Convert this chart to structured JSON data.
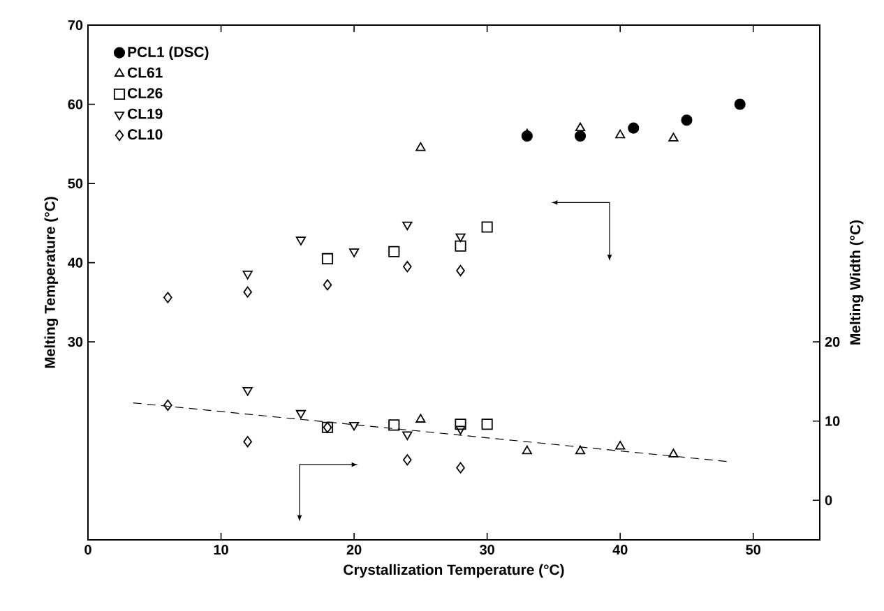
{
  "chart_data": {
    "type": "scatter",
    "xlabel": "Crystallization Temperature (°C)",
    "ylabel": "Melting Temperature (°C)",
    "y2label": "Melting Width (°C)",
    "xlim": [
      0,
      55
    ],
    "xticks": [
      0,
      10,
      20,
      30,
      40,
      50
    ],
    "ylim": [
      5,
      70
    ],
    "yticks": [
      30,
      40,
      50,
      60,
      70
    ],
    "y2lim": [
      -5,
      60
    ],
    "y2ticks": [
      0,
      10,
      20
    ],
    "legend": "top left",
    "series": [
      {
        "name": "PCL1 (DSC)",
        "color": "#000000",
        "marker": "circle",
        "x": [
          33,
          37,
          41,
          45,
          49
        ],
        "values": [
          56,
          56,
          57,
          58,
          60
        ]
      },
      {
        "name": "CL61",
        "color": "#000000",
        "marker": "triangle",
        "x": [
          25,
          33,
          37,
          40,
          44
        ],
        "values": [
          54.5,
          56.2,
          57,
          56.1,
          55.7
        ]
      },
      {
        "name": "CL26",
        "color": "#000000",
        "marker": "square",
        "x": [
          18,
          23,
          28,
          30
        ],
        "values": [
          40.5,
          41.4,
          42.1,
          44.5
        ]
      },
      {
        "name": "CL19",
        "color": "#000000",
        "marker": "triangle-down",
        "x": [
          12,
          16,
          20,
          24,
          28
        ],
        "values": [
          38.6,
          42.9,
          41.4,
          44.8,
          43.3
        ]
      },
      {
        "name": "CL10",
        "color": "#000000",
        "marker": "diamond",
        "x": [
          6,
          12,
          18,
          24,
          28
        ],
        "values": [
          35.6,
          36.3,
          37.2,
          39.5,
          39.0
        ]
      },
      {
        "color": "#000000",
        "marker": "triangle",
        "axis": "y2",
        "x": [
          25,
          33,
          37,
          40,
          44
        ],
        "values": [
          10.2,
          6.2,
          6.2,
          6.8,
          5.8
        ]
      },
      {
        "color": "#000000",
        "marker": "square",
        "axis": "y2",
        "x": [
          18,
          23,
          28,
          30
        ],
        "values": [
          9.2,
          9.5,
          9.6,
          9.6
        ]
      },
      {
        "color": "#000000",
        "marker": "triangle-down",
        "axis": "y2",
        "x": [
          12,
          16,
          20,
          24,
          28
        ],
        "values": [
          13.9,
          11.0,
          9.5,
          8.3,
          9.0
        ]
      },
      {
        "color": "#000000",
        "marker": "diamond",
        "axis": "y2",
        "x": [
          6,
          12,
          18,
          24,
          28
        ],
        "values": [
          12.0,
          7.4,
          9.2,
          5.1,
          4.1
        ]
      },
      {
        "type": "line",
        "color": "#000000",
        "marker": "none",
        "line_style": "dashed",
        "axis": "y2",
        "x": [
          3.4,
          48
        ],
        "values": [
          12.3,
          4.9
        ]
      }
    ]
  }
}
